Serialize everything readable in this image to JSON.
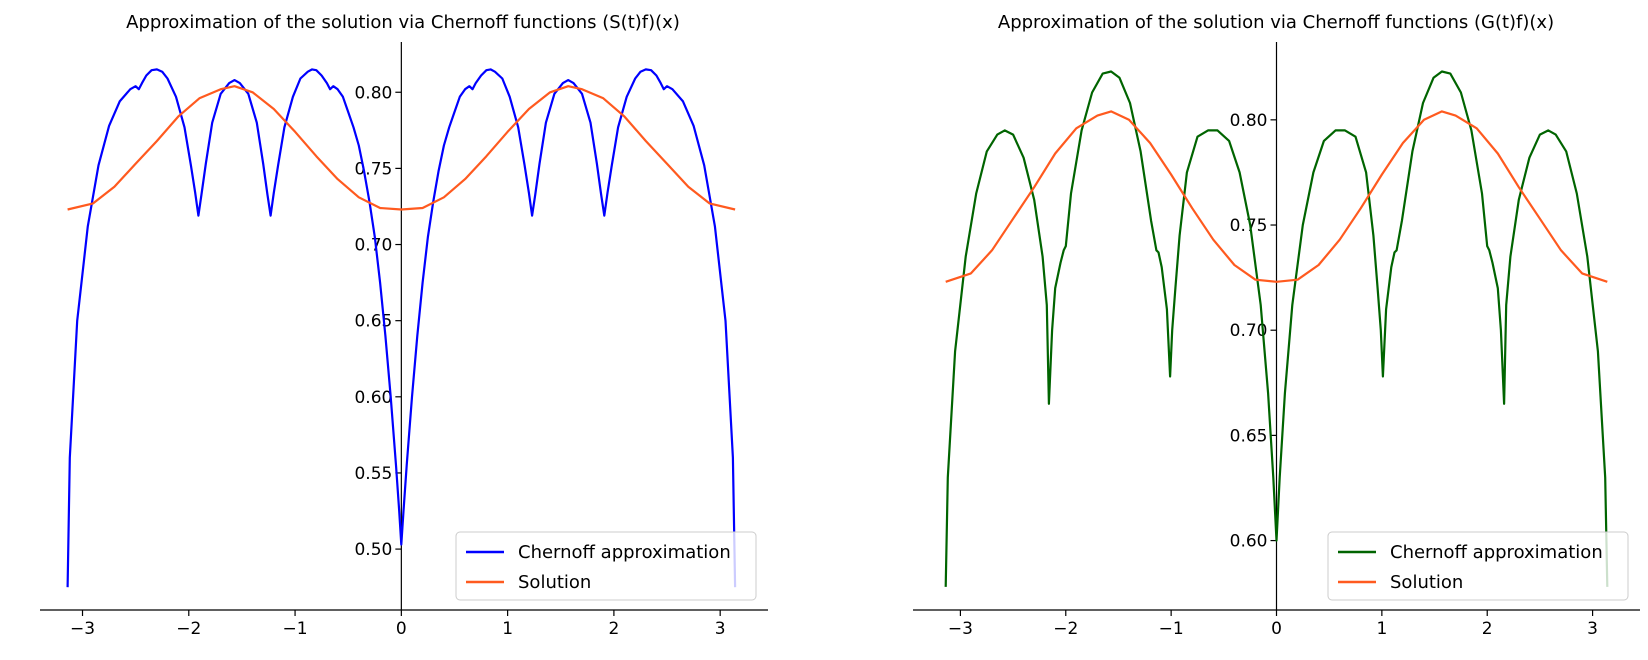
{
  "chart_data": [
    {
      "type": "line",
      "title": "Approximation of the solution via Chernoff functions (S(t)f)(x)",
      "xlabel": "",
      "ylabel": "",
      "xlim": [
        -3.4,
        3.45
      ],
      "ylim": [
        0.46,
        0.833
      ],
      "x_ticks": [
        -3,
        -2,
        -1,
        0,
        1,
        2,
        3
      ],
      "x_tick_labels": [
        "−3",
        "−2",
        "−1",
        "0",
        "1",
        "2",
        "3"
      ],
      "y_ticks": [
        0.5,
        0.55,
        0.6,
        0.65,
        0.7,
        0.75,
        0.8
      ],
      "y_tick_labels": [
        "0.50",
        "0.55",
        "0.60",
        "0.65",
        "0.70",
        "0.75",
        "0.80"
      ],
      "spines": "centered at x=0, y axis through origin",
      "legend_position": "lower right",
      "grid": false,
      "series": [
        {
          "name": "Chernoff approximation",
          "color": "#0000ff",
          "x": [
            -3.14,
            -3.12,
            -3.05,
            -2.95,
            -2.85,
            -2.75,
            -2.65,
            -2.55,
            -2.5,
            -2.47,
            -2.44,
            -2.4,
            -2.35,
            -2.3,
            -2.25,
            -2.2,
            -2.12,
            -2.04,
            -1.98,
            -1.94,
            -1.91,
            -1.88,
            -1.84,
            -1.78,
            -1.7,
            -1.62,
            -1.57,
            -1.52,
            -1.44,
            -1.36,
            -1.3,
            -1.26,
            -1.23,
            -1.2,
            -1.16,
            -1.1,
            -1.02,
            -0.95,
            -0.88,
            -0.84,
            -0.8,
            -0.75,
            -0.7,
            -0.67,
            -0.64,
            -0.6,
            -0.55,
            -0.5,
            -0.45,
            -0.4,
            -0.35,
            -0.3,
            -0.25,
            -0.2,
            -0.15,
            -0.1,
            -0.05,
            -0.02,
            0.0,
            0.02,
            0.05,
            0.1,
            0.15,
            0.2,
            0.25,
            0.3,
            0.35,
            0.4,
            0.45,
            0.5,
            0.55,
            0.6,
            0.64,
            0.67,
            0.7,
            0.75,
            0.8,
            0.84,
            0.88,
            0.95,
            1.02,
            1.1,
            1.16,
            1.2,
            1.23,
            1.26,
            1.3,
            1.36,
            1.44,
            1.52,
            1.57,
            1.62,
            1.7,
            1.78,
            1.84,
            1.88,
            1.91,
            1.94,
            1.98,
            2.04,
            2.12,
            2.2,
            2.25,
            2.3,
            2.35,
            2.4,
            2.44,
            2.47,
            2.5,
            2.55,
            2.65,
            2.75,
            2.85,
            2.95,
            3.05,
            3.12,
            3.14
          ],
          "y": [
            0.475,
            0.56,
            0.65,
            0.712,
            0.752,
            0.778,
            0.794,
            0.802,
            0.804,
            0.802,
            0.806,
            0.811,
            0.8145,
            0.815,
            0.8135,
            0.809,
            0.797,
            0.777,
            0.752,
            0.734,
            0.719,
            0.733,
            0.753,
            0.78,
            0.799,
            0.806,
            0.808,
            0.806,
            0.799,
            0.78,
            0.753,
            0.733,
            0.719,
            0.734,
            0.752,
            0.777,
            0.797,
            0.809,
            0.8135,
            0.815,
            0.8145,
            0.811,
            0.806,
            0.802,
            0.804,
            0.802,
            0.797,
            0.787,
            0.777,
            0.765,
            0.748,
            0.728,
            0.705,
            0.675,
            0.64,
            0.6,
            0.555,
            0.525,
            0.503,
            0.525,
            0.555,
            0.6,
            0.64,
            0.675,
            0.705,
            0.728,
            0.748,
            0.765,
            0.777,
            0.787,
            0.797,
            0.802,
            0.804,
            0.802,
            0.806,
            0.811,
            0.8145,
            0.815,
            0.8135,
            0.809,
            0.797,
            0.777,
            0.752,
            0.734,
            0.719,
            0.733,
            0.753,
            0.78,
            0.799,
            0.806,
            0.808,
            0.806,
            0.799,
            0.78,
            0.753,
            0.733,
            0.719,
            0.734,
            0.752,
            0.777,
            0.797,
            0.809,
            0.8135,
            0.815,
            0.8145,
            0.811,
            0.806,
            0.802,
            0.804,
            0.802,
            0.794,
            0.778,
            0.752,
            0.712,
            0.65,
            0.56,
            0.475
          ]
        },
        {
          "name": "Solution",
          "color": "#ff5a1f",
          "formula_hint": "0.7635 - 0.0405*cos(2x)",
          "x": [
            -3.14,
            -2.9,
            -2.7,
            -2.5,
            -2.3,
            -2.1,
            -1.9,
            -1.7,
            -1.57,
            -1.4,
            -1.2,
            -1.0,
            -0.8,
            -0.6,
            -0.4,
            -0.2,
            0.0,
            0.2,
            0.4,
            0.6,
            0.8,
            1.0,
            1.2,
            1.4,
            1.57,
            1.7,
            1.9,
            2.1,
            2.3,
            2.5,
            2.7,
            2.9,
            3.14
          ],
          "y": [
            0.723,
            0.727,
            0.738,
            0.753,
            0.768,
            0.784,
            0.796,
            0.802,
            0.804,
            0.8,
            0.789,
            0.774,
            0.758,
            0.743,
            0.731,
            0.724,
            0.723,
            0.724,
            0.731,
            0.743,
            0.758,
            0.774,
            0.789,
            0.8,
            0.804,
            0.802,
            0.796,
            0.784,
            0.768,
            0.753,
            0.738,
            0.727,
            0.723
          ]
        }
      ]
    },
    {
      "type": "line",
      "title": "Approximation of the solution via Chernoff functions (G(t)f)(x)",
      "xlabel": "",
      "ylabel": "",
      "xlim": [
        -3.45,
        3.45
      ],
      "ylim": [
        0.567,
        0.837
      ],
      "x_ticks": [
        -3,
        -2,
        -1,
        0,
        1,
        2,
        3
      ],
      "x_tick_labels": [
        "−3",
        "−2",
        "−1",
        "0",
        "1",
        "2",
        "3"
      ],
      "y_ticks": [
        0.6,
        0.65,
        0.7,
        0.75,
        0.8
      ],
      "y_tick_labels": [
        "0.60",
        "0.65",
        "0.70",
        "0.75",
        "0.80"
      ],
      "spines": "centered at x=0, y axis through origin",
      "legend_position": "lower right",
      "grid": false,
      "series": [
        {
          "name": "Chernoff approximation",
          "color": "#006400",
          "x": [
            -3.14,
            -3.12,
            -3.05,
            -2.95,
            -2.85,
            -2.75,
            -2.65,
            -2.58,
            -2.5,
            -2.4,
            -2.3,
            -2.22,
            -2.18,
            -2.16,
            -2.13,
            -2.1,
            -2.05,
            -2.02,
            -2.0,
            -1.95,
            -1.85,
            -1.75,
            -1.65,
            -1.57,
            -1.49,
            -1.39,
            -1.29,
            -1.19,
            -1.14,
            -1.12,
            -1.09,
            -1.04,
            -1.01,
            -0.99,
            -0.96,
            -0.92,
            -0.85,
            -0.75,
            -0.65,
            -0.56,
            -0.45,
            -0.35,
            -0.25,
            -0.15,
            -0.08,
            -0.03,
            0.0,
            0.03,
            0.08,
            0.15,
            0.25,
            0.35,
            0.45,
            0.56,
            0.65,
            0.75,
            0.85,
            0.92,
            0.96,
            0.99,
            1.01,
            1.04,
            1.09,
            1.12,
            1.14,
            1.19,
            1.29,
            1.39,
            1.49,
            1.57,
            1.65,
            1.75,
            1.85,
            1.95,
            2.0,
            2.02,
            2.05,
            2.1,
            2.13,
            2.16,
            2.18,
            2.22,
            2.3,
            2.4,
            2.5,
            2.58,
            2.65,
            2.75,
            2.85,
            2.95,
            3.05,
            3.12,
            3.14
          ],
          "y": [
            0.578,
            0.63,
            0.69,
            0.735,
            0.765,
            0.785,
            0.793,
            0.795,
            0.793,
            0.782,
            0.762,
            0.735,
            0.712,
            0.665,
            0.7,
            0.72,
            0.732,
            0.738,
            0.74,
            0.765,
            0.795,
            0.813,
            0.822,
            0.823,
            0.82,
            0.808,
            0.785,
            0.752,
            0.738,
            0.737,
            0.73,
            0.71,
            0.678,
            0.7,
            0.72,
            0.745,
            0.775,
            0.792,
            0.795,
            0.795,
            0.79,
            0.775,
            0.75,
            0.712,
            0.67,
            0.63,
            0.6,
            0.63,
            0.67,
            0.712,
            0.75,
            0.775,
            0.79,
            0.795,
            0.795,
            0.792,
            0.775,
            0.745,
            0.72,
            0.7,
            0.678,
            0.71,
            0.73,
            0.737,
            0.738,
            0.752,
            0.785,
            0.808,
            0.82,
            0.823,
            0.822,
            0.813,
            0.795,
            0.765,
            0.74,
            0.738,
            0.732,
            0.72,
            0.7,
            0.665,
            0.712,
            0.735,
            0.762,
            0.782,
            0.793,
            0.795,
            0.793,
            0.785,
            0.765,
            0.735,
            0.69,
            0.63,
            0.578
          ]
        },
        {
          "name": "Solution",
          "color": "#ff5a1f",
          "formula_hint": "0.7635 - 0.0405*cos(2x)",
          "x": [
            -3.14,
            -2.9,
            -2.7,
            -2.5,
            -2.3,
            -2.1,
            -1.9,
            -1.7,
            -1.57,
            -1.4,
            -1.2,
            -1.0,
            -0.8,
            -0.6,
            -0.4,
            -0.2,
            0.0,
            0.2,
            0.4,
            0.6,
            0.8,
            1.0,
            1.2,
            1.4,
            1.57,
            1.7,
            1.9,
            2.1,
            2.3,
            2.5,
            2.7,
            2.9,
            3.14
          ],
          "y": [
            0.723,
            0.727,
            0.738,
            0.753,
            0.768,
            0.784,
            0.796,
            0.802,
            0.804,
            0.8,
            0.789,
            0.774,
            0.758,
            0.743,
            0.731,
            0.724,
            0.723,
            0.724,
            0.731,
            0.743,
            0.758,
            0.774,
            0.789,
            0.8,
            0.804,
            0.802,
            0.796,
            0.784,
            0.768,
            0.753,
            0.738,
            0.727,
            0.723
          ]
        }
      ]
    }
  ]
}
